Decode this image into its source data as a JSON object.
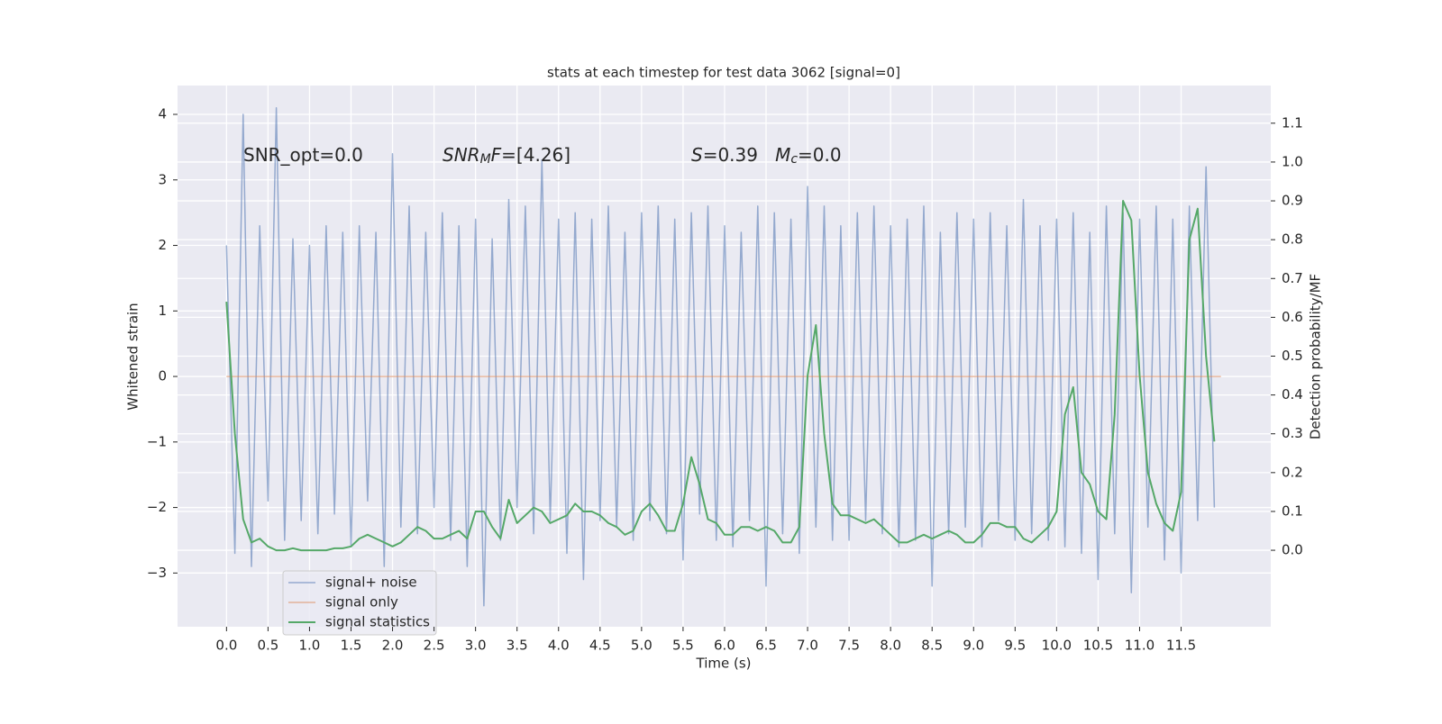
{
  "chart_data": {
    "type": "line",
    "title": "stats at each timestep for test data 3062 [signal=0]",
    "xlabel": "Time (s)",
    "ylabel": "Whitened strain",
    "y2label": "Detection probability/MF",
    "annotations": [
      [
        {
          "text": "SNR_opt=0.0",
          "italic": false
        }
      ],
      [
        {
          "text": "SNR",
          "italic": true
        },
        {
          "text": "M",
          "italic": true,
          "sub": true
        },
        {
          "text": "F",
          "italic": true
        },
        {
          "text": "=[4.26]",
          "italic": false
        }
      ],
      [
        {
          "text": "S",
          "italic": true
        },
        {
          "text": "=0.39   ",
          "italic": false
        },
        {
          "text": "M",
          "italic": true
        },
        {
          "text": "c",
          "italic": true,
          "sub": true
        },
        {
          "text": "=0.0",
          "italic": false
        }
      ]
    ],
    "x": [
      0.0,
      0.1,
      0.2,
      0.3,
      0.4,
      0.5,
      0.6,
      0.7,
      0.8,
      0.9,
      1.0,
      1.1,
      1.2,
      1.3,
      1.4,
      1.5,
      1.6,
      1.7,
      1.8,
      1.9,
      2.0,
      2.1,
      2.2,
      2.3,
      2.4,
      2.5,
      2.6,
      2.7,
      2.8,
      2.9,
      3.0,
      3.1,
      3.2,
      3.3,
      3.4,
      3.5,
      3.6,
      3.7,
      3.8,
      3.9,
      4.0,
      4.1,
      4.2,
      4.3,
      4.4,
      4.5,
      4.6,
      4.7,
      4.8,
      4.9,
      5.0,
      5.1,
      5.2,
      5.3,
      5.4,
      5.5,
      5.6,
      5.7,
      5.8,
      5.9,
      6.0,
      6.1,
      6.2,
      6.3,
      6.4,
      6.5,
      6.6,
      6.7,
      6.8,
      6.9,
      7.0,
      7.1,
      7.2,
      7.3,
      7.4,
      7.5,
      7.6,
      7.7,
      7.8,
      7.9,
      8.0,
      8.1,
      8.2,
      8.3,
      8.4,
      8.5,
      8.6,
      8.7,
      8.8,
      8.9,
      9.0,
      9.1,
      9.2,
      9.3,
      9.4,
      9.5,
      9.6,
      9.7,
      9.8,
      9.9,
      10.0,
      10.1,
      10.2,
      10.3,
      10.4,
      10.5,
      10.6,
      10.7,
      10.8,
      10.9,
      11.0,
      11.1,
      11.2,
      11.3,
      11.4,
      11.5,
      11.6,
      11.7,
      11.8,
      11.9
    ],
    "series": [
      {
        "name": "signal+ noise",
        "color": "#4c72b0",
        "axis": "y",
        "values": [
          2.0,
          -2.7,
          4.0,
          -2.9,
          2.3,
          -1.9,
          4.1,
          -2.5,
          2.1,
          -2.2,
          2.0,
          -2.4,
          2.3,
          -2.1,
          2.2,
          -2.6,
          2.3,
          -1.9,
          2.2,
          -2.9,
          3.4,
          -2.3,
          2.6,
          -2.4,
          2.2,
          -2.0,
          2.5,
          -2.5,
          2.3,
          -2.9,
          2.4,
          -3.5,
          2.1,
          -2.5,
          2.7,
          -2.0,
          2.6,
          -2.4,
          3.3,
          -2.2,
          2.4,
          -2.7,
          2.5,
          -3.1,
          2.4,
          -2.2,
          2.6,
          -2.3,
          2.2,
          -2.5,
          2.5,
          -2.2,
          2.6,
          -2.4,
          2.4,
          -2.8,
          2.5,
          -2.1,
          2.6,
          -2.5,
          2.3,
          -2.6,
          2.2,
          -2.2,
          2.6,
          -3.2,
          2.5,
          -2.4,
          2.4,
          -2.7,
          2.9,
          -2.3,
          2.6,
          -2.5,
          2.3,
          -2.5,
          2.5,
          -2.2,
          2.6,
          -2.4,
          2.3,
          -2.6,
          2.4,
          -2.5,
          2.6,
          -3.2,
          2.2,
          -2.4,
          2.5,
          -2.3,
          2.4,
          -2.6,
          2.5,
          -2.2,
          2.3,
          -2.5,
          2.7,
          -2.4,
          2.3,
          -2.5,
          2.4,
          -2.6,
          2.5,
          -2.7,
          2.2,
          -3.1,
          2.6,
          -2.4,
          2.5,
          -3.3,
          2.4,
          -2.3,
          2.6,
          -2.8,
          2.4,
          -3.0,
          2.6,
          -2.2,
          3.2,
          -2.0
        ]
      },
      {
        "name": "signal only",
        "color": "#dd8452",
        "axis": "y",
        "x": [
          0.0,
          11.98
        ],
        "values": [
          0.0,
          0.0
        ]
      },
      {
        "name": "signal statistics",
        "color": "#55a868",
        "axis": "y2",
        "values": [
          0.64,
          0.3,
          0.08,
          0.02,
          0.03,
          0.01,
          0.0,
          0.0,
          0.005,
          0.0,
          0.0,
          0.0,
          0.0,
          0.005,
          0.005,
          0.01,
          0.03,
          0.04,
          0.03,
          0.02,
          0.01,
          0.02,
          0.04,
          0.06,
          0.05,
          0.03,
          0.03,
          0.04,
          0.05,
          0.03,
          0.1,
          0.1,
          0.06,
          0.03,
          0.13,
          0.07,
          0.09,
          0.11,
          0.1,
          0.07,
          0.08,
          0.09,
          0.12,
          0.1,
          0.1,
          0.09,
          0.07,
          0.06,
          0.04,
          0.05,
          0.1,
          0.12,
          0.09,
          0.05,
          0.05,
          0.12,
          0.24,
          0.17,
          0.08,
          0.07,
          0.04,
          0.04,
          0.06,
          0.06,
          0.05,
          0.06,
          0.05,
          0.02,
          0.02,
          0.06,
          0.45,
          0.58,
          0.3,
          0.12,
          0.09,
          0.09,
          0.08,
          0.07,
          0.08,
          0.06,
          0.04,
          0.02,
          0.02,
          0.03,
          0.04,
          0.03,
          0.04,
          0.05,
          0.04,
          0.02,
          0.02,
          0.04,
          0.07,
          0.07,
          0.06,
          0.06,
          0.03,
          0.02,
          0.04,
          0.06,
          0.1,
          0.35,
          0.42,
          0.2,
          0.17,
          0.1,
          0.08,
          0.35,
          0.9,
          0.85,
          0.45,
          0.2,
          0.12,
          0.07,
          0.05,
          0.15,
          0.8,
          0.88,
          0.5,
          0.28
        ]
      }
    ],
    "xlim": [
      -0.59,
      12.58
    ],
    "ylim": [
      -3.82,
      4.44
    ],
    "y2lim": [
      -0.197,
      1.197
    ],
    "xticks": [
      {
        "value": 0,
        "label": "0.0"
      },
      0.5,
      {
        "value": 1,
        "label": "1.0"
      },
      1.5,
      {
        "value": 2,
        "label": "2.0"
      },
      2.5,
      {
        "value": 3,
        "label": "3.0"
      },
      3.5,
      {
        "value": 4,
        "label": "4.0"
      },
      4.5,
      {
        "value": 5,
        "label": "5.0"
      },
      5.5,
      {
        "value": 6,
        "label": "6.0"
      },
      6.5,
      {
        "value": 7,
        "label": "7.0"
      },
      7.5,
      {
        "value": 8,
        "label": "8.0"
      },
      8.5,
      {
        "value": 9,
        "label": "9.0"
      },
      9.5,
      {
        "value": 10,
        "label": "10.0"
      },
      10.5,
      {
        "value": 11,
        "label": "11.0"
      },
      11.5
    ],
    "yticks": [
      {
        "value": -3,
        "label": "−3"
      },
      {
        "value": -2,
        "label": "−2"
      },
      {
        "value": -1,
        "label": "−1"
      },
      0,
      1,
      2,
      3,
      4
    ],
    "y2ticks": [
      {
        "value": 0,
        "label": "0.0"
      },
      0.1,
      0.2,
      0.3,
      0.4,
      0.5,
      0.6,
      0.7,
      0.8,
      0.9,
      {
        "value": 1,
        "label": "1.0"
      },
      1.1
    ],
    "grid": true,
    "legend": "lower left"
  }
}
